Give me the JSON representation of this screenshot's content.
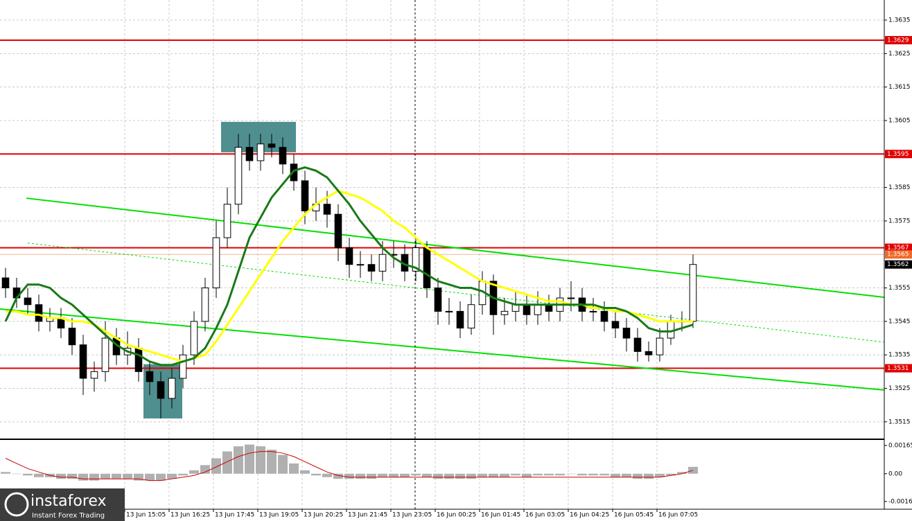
{
  "chart_data": {
    "type": "candlestick",
    "xlim": [
      0,
      319
    ],
    "ylim": [
      1.351,
      1.3641
    ],
    "yticks": [
      1.3635,
      1.3625,
      1.3615,
      1.3605,
      1.3585,
      1.3575,
      1.3555,
      1.3545,
      1.3535,
      1.3525,
      1.3515
    ],
    "xticks": [
      {
        "value": 45,
        "label": "13 Jun 15:05"
      },
      {
        "value": 61,
        "label": "13 Jun 16:25"
      },
      {
        "value": 77,
        "label": "13 Jun 17:45"
      },
      {
        "value": 93,
        "label": "13 Jun 19:05"
      },
      {
        "value": 109,
        "label": "13 Jun 20:25"
      },
      {
        "value": 125,
        "label": "13 Jun 21:45"
      },
      {
        "value": 141,
        "label": "13 Jun 23:05"
      },
      {
        "value": 157,
        "label": "16 Jun 00:25"
      },
      {
        "value": 173,
        "label": "16 Jun 01:45"
      },
      {
        "value": 189,
        "label": "16 Jun 03:05"
      },
      {
        "value": 205,
        "label": "16 Jun 04:25"
      },
      {
        "value": 221,
        "label": "16 Jun 05:45"
      },
      {
        "value": 237,
        "label": "16 Jun 07:05"
      }
    ],
    "grid": true,
    "x": [
      2,
      6,
      10,
      14,
      18,
      22,
      26,
      30,
      34,
      38,
      42,
      46,
      50,
      54,
      58,
      62,
      66,
      70,
      74,
      78,
      82,
      86,
      90,
      94,
      98,
      102,
      106,
      110,
      114,
      118,
      122,
      126,
      130,
      134,
      138,
      142,
      146,
      150,
      154,
      158,
      162,
      166,
      170,
      174,
      178,
      182,
      186,
      190,
      194,
      198,
      202,
      206,
      210,
      214,
      218,
      222,
      226,
      230,
      234,
      238,
      242,
      246,
      250
    ],
    "open": [
      1.3558,
      1.3555,
      1.3552,
      1.355,
      1.3545,
      1.3546,
      1.3543,
      1.3538,
      1.3528,
      1.353,
      1.354,
      1.3535,
      1.3537,
      1.353,
      1.3527,
      1.3522,
      1.3528,
      1.3535,
      1.3545,
      1.3555,
      1.357,
      1.358,
      1.3597,
      1.3593,
      1.3598,
      1.3597,
      1.3592,
      1.3587,
      1.3578,
      1.358,
      1.3577,
      1.3567,
      1.3562,
      1.3562,
      1.356,
      1.3565,
      1.3565,
      1.356,
      1.3567,
      1.3555,
      1.3548,
      1.3548,
      1.3543,
      1.355,
      1.3557,
      1.3547,
      1.3548,
      1.355,
      1.3547,
      1.355,
      1.3548,
      1.3552,
      1.3552,
      1.3548,
      1.3548,
      1.3545,
      1.3543,
      1.354,
      1.3536,
      1.3535,
      1.354,
      1.3545,
      1.3545
    ],
    "high": [
      1.3561,
      1.3558,
      1.3555,
      1.3553,
      1.3549,
      1.3549,
      1.3546,
      1.3541,
      1.3533,
      1.3545,
      1.3543,
      1.3542,
      1.354,
      1.3533,
      1.353,
      1.3531,
      1.3538,
      1.3548,
      1.3558,
      1.3575,
      1.3585,
      1.3601,
      1.3601,
      1.3601,
      1.3601,
      1.36,
      1.3595,
      1.359,
      1.3585,
      1.3584,
      1.358,
      1.357,
      1.3566,
      1.3565,
      1.3569,
      1.3569,
      1.3568,
      1.357,
      1.3569,
      1.3558,
      1.3552,
      1.3551,
      1.3553,
      1.356,
      1.3559,
      1.3552,
      1.3554,
      1.3553,
      1.3554,
      1.3553,
      1.3555,
      1.3557,
      1.3555,
      1.3552,
      1.3551,
      1.3548,
      1.3546,
      1.3543,
      1.3539,
      1.3543,
      1.3547,
      1.3548,
      1.3565
    ],
    "low": [
      1.3552,
      1.3549,
      1.3547,
      1.3542,
      1.3542,
      1.354,
      1.3535,
      1.3523,
      1.3524,
      1.3527,
      1.3532,
      1.3532,
      1.3527,
      1.3523,
      1.3516,
      1.3519,
      1.3525,
      1.3532,
      1.3542,
      1.3552,
      1.3567,
      1.3577,
      1.359,
      1.359,
      1.3594,
      1.3589,
      1.3584,
      1.3574,
      1.3575,
      1.3573,
      1.3563,
      1.3558,
      1.3558,
      1.3557,
      1.3557,
      1.3561,
      1.3557,
      1.3557,
      1.3552,
      1.3544,
      1.3544,
      1.354,
      1.3541,
      1.3547,
      1.3541,
      1.3544,
      1.3545,
      1.3544,
      1.3544,
      1.3545,
      1.3545,
      1.3548,
      1.3545,
      1.3545,
      1.3542,
      1.354,
      1.3536,
      1.3533,
      1.3533,
      1.3533,
      1.3538,
      1.3542,
      1.3543
    ],
    "close": [
      1.3555,
      1.3552,
      1.355,
      1.3545,
      1.3546,
      1.3543,
      1.3538,
      1.3528,
      1.353,
      1.354,
      1.3535,
      1.3537,
      1.353,
      1.3527,
      1.3522,
      1.3528,
      1.3535,
      1.3545,
      1.3555,
      1.357,
      1.358,
      1.3597,
      1.3593,
      1.3598,
      1.3597,
      1.3592,
      1.3587,
      1.3578,
      1.358,
      1.3577,
      1.3567,
      1.3562,
      1.3562,
      1.356,
      1.3565,
      1.3565,
      1.356,
      1.3567,
      1.3555,
      1.3548,
      1.3548,
      1.3543,
      1.355,
      1.3557,
      1.3547,
      1.3548,
      1.355,
      1.3547,
      1.355,
      1.3548,
      1.3552,
      1.3552,
      1.3548,
      1.3548,
      1.3545,
      1.3543,
      1.354,
      1.3536,
      1.3535,
      1.354,
      1.3545,
      1.3545,
      1.3562
    ],
    "overlays": [
      {
        "color": "#ffff00",
        "values": [
          1.3548,
          1.3548,
          1.3547,
          1.3547,
          1.3546,
          1.3546,
          1.3545,
          1.3545,
          1.3544,
          1.3542,
          1.354,
          1.3538,
          1.3537,
          1.3536,
          1.3535,
          1.3534,
          1.3533,
          1.3534,
          1.3535,
          1.3539,
          1.3544,
          1.3549,
          1.3554,
          1.3559,
          1.3564,
          1.3569,
          1.3573,
          1.3577,
          1.358,
          1.3582,
          1.3584,
          1.3583,
          1.3582,
          1.358,
          1.3578,
          1.3575,
          1.3573,
          1.357,
          1.3567,
          1.3565,
          1.3563,
          1.3561,
          1.3559,
          1.3557,
          1.3556,
          1.3555,
          1.3554,
          1.3553,
          1.3552,
          1.3551,
          1.3551,
          1.355,
          1.355,
          1.3549,
          1.3549,
          1.3548,
          1.3548,
          1.3547,
          1.3546,
          1.3545,
          1.3545,
          1.3545,
          1.3545
        ]
      },
      {
        "color": "#177a17",
        "values": [
          1.3545,
          1.3552,
          1.3556,
          1.3556,
          1.3555,
          1.3552,
          1.355,
          1.3547,
          1.3544,
          1.3541,
          1.3538,
          1.3536,
          1.3535,
          1.3533,
          1.3532,
          1.3532,
          1.3533,
          1.3534,
          1.3537,
          1.3543,
          1.355,
          1.356,
          1.357,
          1.3576,
          1.3582,
          1.3586,
          1.359,
          1.3591,
          1.359,
          1.3588,
          1.3584,
          1.358,
          1.3575,
          1.3571,
          1.3567,
          1.3564,
          1.3562,
          1.3561,
          1.3559,
          1.3557,
          1.3556,
          1.3555,
          1.3555,
          1.3554,
          1.3552,
          1.3551,
          1.355,
          1.355,
          1.355,
          1.355,
          1.355,
          1.355,
          1.355,
          1.355,
          1.3549,
          1.3549,
          1.3548,
          1.3546,
          1.3543,
          1.3542,
          1.3542,
          1.3543,
          1.3544
        ]
      }
    ],
    "trendlines": [
      {
        "color": "#00e000",
        "style": "solid",
        "x": [
          9.5,
          319
        ],
        "y": [
          1.35818,
          1.35522
        ]
      },
      {
        "color": "#00e000",
        "style": "solid",
        "x": [
          0,
          319
        ],
        "y": [
          1.35487,
          1.35245
        ]
      },
      {
        "color": "#00e000",
        "style": "dashed",
        "x": [
          10,
          319
        ],
        "y": [
          1.35684,
          1.35388
        ]
      }
    ],
    "zones": [
      {
        "color": "#4f8f8f",
        "x": [
          51.75,
          65.75
        ],
        "y": [
          1.3516,
          1.35322
        ]
      },
      {
        "color": "#4f8f8f",
        "x": [
          79.75,
          106.75
        ],
        "y": [
          1.35955,
          1.36046
        ]
      }
    ],
    "levels": [
      {
        "value": 1.3629,
        "color": "#e00000"
      },
      {
        "value": 1.3595,
        "color": "#e00000"
      },
      {
        "value": 1.3567,
        "color": "#e00000"
      },
      {
        "value": 1.3565,
        "color": "#f06a2a"
      },
      {
        "value": 1.3531,
        "color": "#e00000"
      }
    ],
    "last_price": 1.3562,
    "indicator": {
      "ylim": [
        -0.00207,
        0.00193
      ],
      "yticks": [
        0.00165,
        {
          "value": 0,
          "label": "0.00"
        },
        -0.00162
      ],
      "hist_color": "#b0b0b0",
      "signal_color": "#cc0000",
      "histogram": [
        0.0001,
        0.0,
        -0.0001,
        -0.0002,
        -0.0002,
        -0.0003,
        -0.0003,
        -0.0004,
        -0.0004,
        -0.0003,
        -0.0003,
        -0.0003,
        -0.0004,
        -0.0004,
        -0.0004,
        -0.0003,
        -0.0001,
        0.0002,
        0.0005,
        0.0009,
        0.0013,
        0.0016,
        0.0017,
        0.0016,
        0.0014,
        0.0011,
        0.0006,
        0.0002,
        -0.0001,
        -0.0002,
        -0.0003,
        -0.0003,
        -0.0003,
        -0.0003,
        -0.0002,
        -0.0002,
        -0.0002,
        -0.0001,
        -0.0002,
        -0.0003,
        -0.0003,
        -0.0003,
        -0.0003,
        -0.0002,
        -0.0002,
        -0.0002,
        -0.0001,
        -0.0002,
        -0.0001,
        -0.0001,
        -0.0001,
        0.0,
        -0.0001,
        -0.0001,
        -0.0001,
        -0.0002,
        -0.0002,
        -0.0003,
        -0.0003,
        -0.0002,
        -0.0001,
        0.0001,
        0.0004
      ],
      "signal": [
        0.0009,
        0.0006,
        0.0003,
        0.0001,
        -0.0001,
        -0.0002,
        -0.0002,
        -0.0003,
        -0.0003,
        -0.0003,
        -0.0003,
        -0.0003,
        -0.0003,
        -0.0004,
        -0.0004,
        -0.0003,
        -0.0002,
        -0.0001,
        0.0001,
        0.0004,
        0.0007,
        0.001,
        0.0012,
        0.0013,
        0.0013,
        0.0012,
        0.001,
        0.0007,
        0.0004,
        0.0001,
        -0.0001,
        -0.0002,
        -0.0002,
        -0.0002,
        -0.0002,
        -0.0002,
        -0.0002,
        -0.0002,
        -0.0002,
        -0.0002,
        -0.0002,
        -0.0002,
        -0.0002,
        -0.0002,
        -0.0002,
        -0.0002,
        -0.0002,
        -0.0002,
        -0.0002,
        -0.0002,
        -0.0002,
        -0.0002,
        -0.0002,
        -0.0002,
        -0.0002,
        -0.0002,
        -0.0002,
        -0.0002,
        -0.0002,
        -0.0002,
        -0.0001,
        0.0,
        0.0002
      ]
    }
  },
  "branding": {
    "name": "instaforex",
    "tagline": "Instant Forex Trading"
  }
}
